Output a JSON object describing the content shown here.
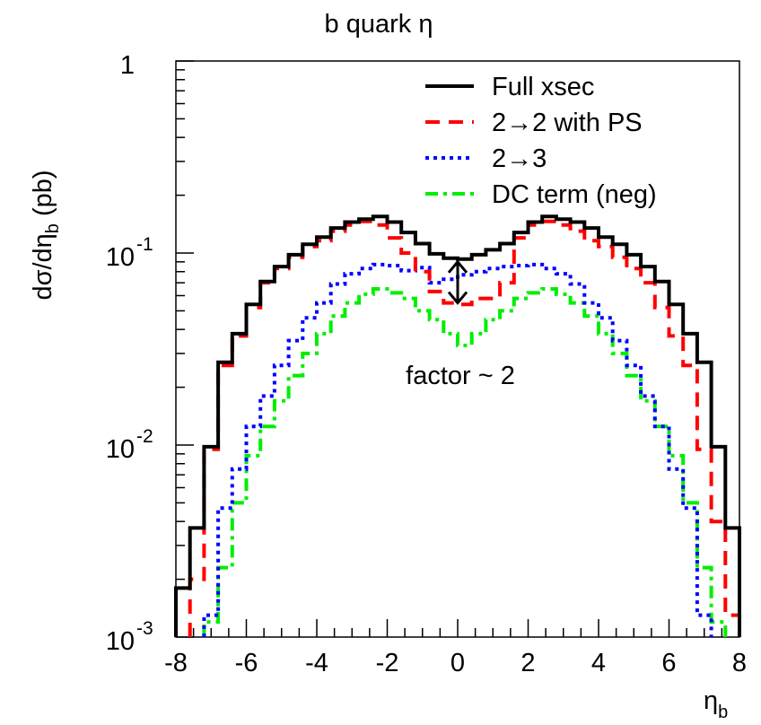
{
  "chart_data": {
    "type": "line",
    "style": "step-histogram",
    "title": "b quark η",
    "xlabel": "η",
    "xlabel_sub": "b",
    "ylabel": "dσ/dη",
    "ylabel_sub": "b",
    "ylabel_unit": " (pb)",
    "x_scale": "linear",
    "y_scale": "log",
    "xlim": [
      -8,
      8
    ],
    "ylim": [
      0.001,
      1
    ],
    "x_ticks": [
      -8,
      -6,
      -4,
      -2,
      0,
      2,
      4,
      6,
      8
    ],
    "x_tick_labels": [
      "-8",
      "-6",
      "-4",
      "-2",
      "0",
      "2",
      "4",
      "6",
      "8"
    ],
    "y_ticks": [
      {
        "value": 0.001,
        "base": "10",
        "exp": "-3"
      },
      {
        "value": 0.01,
        "base": "10",
        "exp": "-2"
      },
      {
        "value": 0.1,
        "base": "10",
        "exp": "-1"
      },
      {
        "value": 1,
        "base": "1",
        "exp": ""
      }
    ],
    "grid": false,
    "legend_position": "top-right",
    "bin_edges": [
      -8,
      -7.6,
      -7.2,
      -6.8,
      -6.4,
      -6,
      -5.6,
      -5.2,
      -4.8,
      -4.4,
      -4,
      -3.6,
      -3.2,
      -2.8,
      -2.4,
      -2,
      -1.6,
      -1.2,
      -0.8,
      -0.4,
      0,
      0.4,
      0.8,
      1.2,
      1.6,
      2,
      2.4,
      2.8,
      3.2,
      3.6,
      4,
      4.4,
      4.8,
      5.2,
      5.6,
      6,
      6.4,
      6.8,
      7.2,
      7.6,
      8
    ],
    "series": [
      {
        "name": "Full xsec",
        "color": "#000000",
        "dash": "solid",
        "values": [
          0.0018,
          0.0037,
          0.0098,
          0.027,
          0.038,
          0.054,
          0.071,
          0.085,
          0.098,
          0.111,
          0.121,
          0.135,
          0.145,
          0.15,
          0.155,
          0.145,
          0.128,
          0.112,
          0.099,
          0.094,
          0.093,
          0.098,
          0.104,
          0.112,
          0.128,
          0.145,
          0.155,
          0.15,
          0.145,
          0.135,
          0.121,
          0.111,
          0.098,
          0.085,
          0.071,
          0.054,
          0.038,
          0.027,
          0.0098,
          0.0037
        ]
      },
      {
        "name": "2→2 with PS",
        "color": "#ff0000",
        "dash": "dashed",
        "values": [
          0.0,
          0.002,
          0.0095,
          0.026,
          0.037,
          0.052,
          0.07,
          0.083,
          0.095,
          0.108,
          0.116,
          0.13,
          0.14,
          0.146,
          0.14,
          0.12,
          0.1,
          0.08,
          0.063,
          0.055,
          0.054,
          0.058,
          0.058,
          0.07,
          0.12,
          0.14,
          0.146,
          0.14,
          0.13,
          0.116,
          0.108,
          0.095,
          0.083,
          0.07,
          0.052,
          0.037,
          0.026,
          0.0095,
          0.004,
          0.0013
        ]
      },
      {
        "name": "2→3",
        "color": "#0000ff",
        "dash": "dotted",
        "values": [
          0.0,
          0.00095,
          0.0013,
          0.0047,
          0.0075,
          0.0125,
          0.018,
          0.026,
          0.035,
          0.046,
          0.055,
          0.069,
          0.078,
          0.083,
          0.087,
          0.086,
          0.081,
          0.084,
          0.07,
          0.073,
          0.077,
          0.08,
          0.083,
          0.085,
          0.086,
          0.087,
          0.083,
          0.078,
          0.069,
          0.055,
          0.046,
          0.035,
          0.026,
          0.018,
          0.0125,
          0.0075,
          0.0047,
          0.0013,
          0.00095,
          0.0
        ]
      },
      {
        "name": "DC term (neg)",
        "color": "#00ee00",
        "dash": "dashdot",
        "values": [
          0.0,
          0.0,
          0.0012,
          0.0023,
          0.005,
          0.0088,
          0.0125,
          0.017,
          0.023,
          0.03,
          0.038,
          0.047,
          0.055,
          0.061,
          0.065,
          0.062,
          0.058,
          0.05,
          0.045,
          0.038,
          0.033,
          0.038,
          0.045,
          0.05,
          0.058,
          0.062,
          0.065,
          0.061,
          0.055,
          0.047,
          0.038,
          0.03,
          0.023,
          0.017,
          0.0125,
          0.0088,
          0.005,
          0.0023,
          0.0012,
          0.0
        ]
      }
    ],
    "annotations": [
      {
        "text": "factor ~ 2",
        "x": 0.3,
        "y": 0.025
      },
      {
        "type": "double-arrow",
        "x": 0.0,
        "y_from": 0.09,
        "y_to": 0.055
      }
    ]
  }
}
